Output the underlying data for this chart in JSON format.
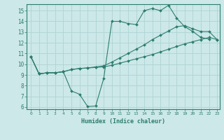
{
  "xlabel": "Humidex (Indice chaleur)",
  "bg_color": "#cce8e8",
  "line_color": "#2d7d6e",
  "grid_color": "#aacfcf",
  "xlim": [
    -0.5,
    23.3
  ],
  "ylim": [
    5.8,
    15.6
  ],
  "yticks": [
    6,
    7,
    8,
    9,
    10,
    11,
    12,
    13,
    14,
    15
  ],
  "xticks": [
    0,
    1,
    2,
    3,
    4,
    5,
    6,
    7,
    8,
    9,
    10,
    11,
    12,
    13,
    14,
    15,
    16,
    17,
    18,
    19,
    20,
    21,
    22,
    23
  ],
  "series": [
    {
      "x": [
        0,
        1,
        2,
        3,
        4,
        5,
        6,
        7,
        8,
        9,
        10,
        11,
        12,
        13,
        14,
        15,
        16,
        17,
        18,
        19,
        20,
        21,
        22,
        23
      ],
      "y": [
        10.7,
        9.1,
        9.2,
        9.2,
        9.3,
        9.5,
        9.6,
        9.65,
        9.7,
        9.75,
        9.9,
        10.1,
        10.3,
        10.5,
        10.7,
        10.9,
        11.15,
        11.4,
        11.65,
        11.9,
        12.1,
        12.3,
        12.5,
        12.3
      ]
    },
    {
      "x": [
        0,
        1,
        2,
        3,
        4,
        5,
        6,
        7,
        8,
        9,
        10,
        11,
        12,
        13,
        14,
        15,
        16,
        17,
        18,
        19,
        20,
        21,
        22,
        23
      ],
      "y": [
        10.7,
        9.1,
        9.2,
        9.2,
        9.3,
        9.5,
        9.6,
        9.65,
        9.75,
        9.85,
        10.2,
        10.6,
        11.0,
        11.4,
        11.8,
        12.3,
        12.7,
        13.1,
        13.5,
        13.6,
        13.3,
        13.05,
        13.05,
        12.3
      ]
    },
    {
      "x": [
        0,
        1,
        2,
        3,
        4,
        5,
        6,
        7,
        8,
        9,
        10,
        11,
        12,
        13,
        14,
        15,
        16,
        17,
        18,
        19,
        20,
        21,
        22
      ],
      "y": [
        10.7,
        9.1,
        9.2,
        9.2,
        9.3,
        7.5,
        7.2,
        6.05,
        6.1,
        8.7,
        14.0,
        14.0,
        13.8,
        13.7,
        15.0,
        15.2,
        15.0,
        15.5,
        14.3,
        13.5,
        13.05,
        12.5,
        12.35
      ]
    }
  ]
}
